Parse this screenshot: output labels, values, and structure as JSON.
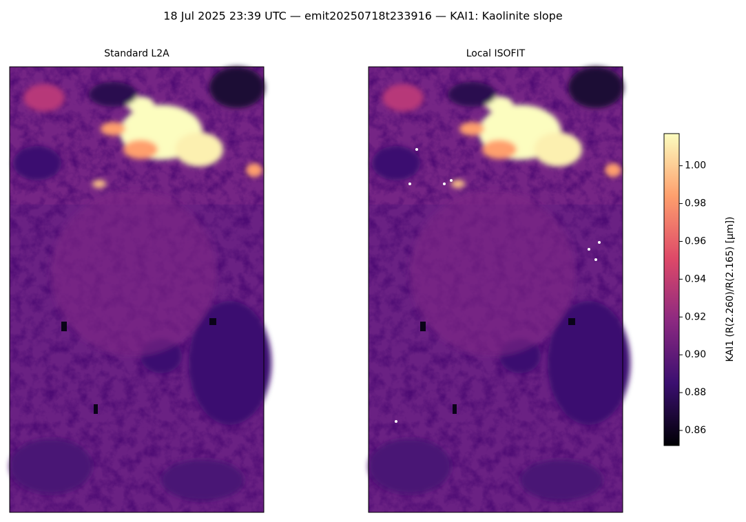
{
  "chart_data": {
    "type": "image",
    "title": "18 Jul 2025 23:39 UTC — emit20250718t233916 — KAI1: Kaolinite slope",
    "panels": [
      {
        "title": "Standard L2A"
      },
      {
        "title": "Local ISOFIT"
      }
    ],
    "colorbar": {
      "label": "KAI1  (R(2.260)/R(2.165)  [µm])",
      "colormap": "magma",
      "lim": [
        0.852,
        1.017
      ],
      "ticks": [
        0.86,
        0.88,
        {
          "value": 0.9,
          "label": "0.90"
        },
        0.92,
        0.94,
        0.96,
        0.98,
        {
          "value": 1.0,
          "label": "1.00"
        }
      ]
    }
  }
}
